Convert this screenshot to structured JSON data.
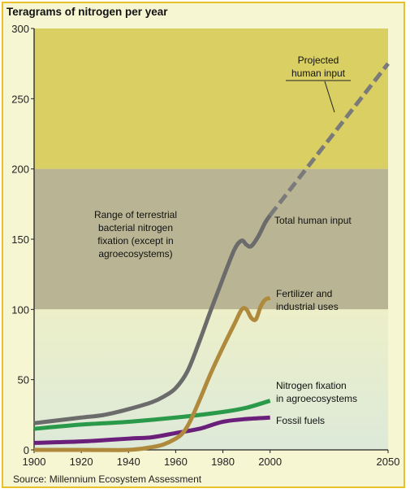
{
  "chart_data": {
    "type": "line",
    "title": "Teragrams of nitrogen per year",
    "source": "Source: Millennium Ecosystem Assessment",
    "xlim": [
      1900,
      2050
    ],
    "ylim": [
      0,
      300
    ],
    "x_ticks": [
      1900,
      1920,
      1940,
      1960,
      1980,
      2000,
      2050
    ],
    "y_ticks": [
      0,
      50,
      100,
      150,
      200,
      250,
      300
    ],
    "grid": false,
    "bands": [
      {
        "from": 200,
        "to": 300,
        "color": "#d9cf63"
      },
      {
        "from": 100,
        "to": 200,
        "color": "#b9b594"
      },
      {
        "from": 0,
        "to": 100,
        "color": "#e8edc0"
      }
    ],
    "range_label": "Range of terrestrial bacterial nitrogen fixation (except in agroecosystems)",
    "range_label_lines": [
      "Range of terrestrial",
      "bacterial nitrogen",
      "fixation (except in",
      "agroecosystems)"
    ],
    "series": [
      {
        "name": "Total human input",
        "color": "#6b6b6b",
        "x": [
          1900,
          1910,
          1920,
          1930,
          1940,
          1950,
          1955,
          1960,
          1965,
          1970,
          1975,
          1980,
          1985,
          1988,
          1990,
          1992,
          1995,
          1998,
          2000
        ],
        "y": [
          19,
          21,
          23,
          25,
          29,
          34,
          38,
          44,
          56,
          77,
          100,
          122,
          143,
          149,
          146,
          145,
          152,
          162,
          167
        ]
      },
      {
        "name": "Fertilizer and industrial uses",
        "color": "#b08a3c",
        "x": [
          1900,
          1920,
          1940,
          1950,
          1955,
          1960,
          1963,
          1966,
          1970,
          1975,
          1980,
          1985,
          1988,
          1990,
          1992,
          1994,
          1996,
          1998,
          2000
        ],
        "y": [
          0,
          0,
          0,
          2,
          4,
          8,
          12,
          20,
          35,
          55,
          73,
          90,
          100,
          100,
          94,
          93,
          102,
          107,
          108
        ]
      },
      {
        "name": "Nitrogen fixation in agroecosystems",
        "color": "#2a9a4a",
        "x": [
          1900,
          1920,
          1940,
          1960,
          1980,
          1990,
          2000
        ],
        "y": [
          15,
          18,
          20,
          23,
          27,
          30,
          35
        ]
      },
      {
        "name": "Fossil fuels",
        "color": "#6a1f7a",
        "x": [
          1900,
          1920,
          1940,
          1950,
          1960,
          1970,
          1980,
          1990,
          2000
        ],
        "y": [
          5,
          6,
          8,
          9,
          12,
          15,
          20,
          22,
          23
        ]
      },
      {
        "name": "Projected human input",
        "color": "#7a7a7a",
        "dashed": true,
        "x": [
          2000,
          2050
        ],
        "y": [
          167,
          275
        ]
      }
    ],
    "annotations": {
      "total_human_input": "Total human input",
      "fertilizer": [
        "Fertilizer and",
        "industrial uses"
      ],
      "fixation": [
        "Nitrogen fixation",
        "in agroecosystems"
      ],
      "fossil_fuels": "Fossil fuels",
      "projected": [
        "Projected",
        "human input"
      ]
    }
  }
}
